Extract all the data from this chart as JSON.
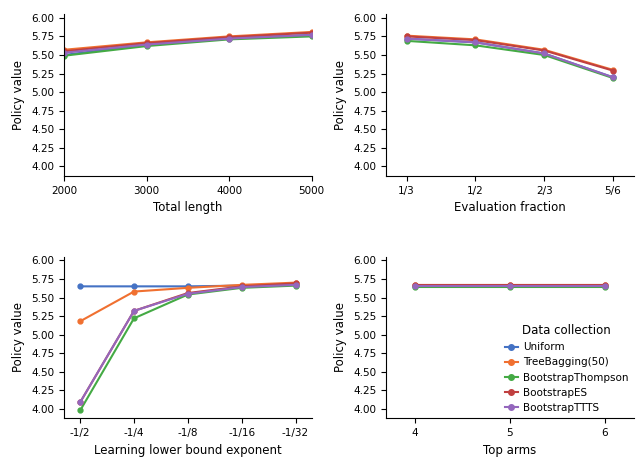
{
  "colors": {
    "Uniform": "#4472c4",
    "TreeBagging50": "#f07030",
    "BootstrapThompson": "#44aa44",
    "BootstrapES": "#c04040",
    "BootstrapTTTS": "#9467bd"
  },
  "legend_labels": [
    "Uniform",
    "TreeBagging(50)",
    "BootstrapThompson",
    "BootstrapES",
    "BootstrapTTTS"
  ],
  "legend_colors": [
    "#4472c4",
    "#f07030",
    "#44aa44",
    "#c04040",
    "#9467bd"
  ],
  "plot1": {
    "xlabel": "Total length",
    "ylabel": "Policy value",
    "xlim": [
      2000,
      5000
    ],
    "ylim": [
      3.875,
      6.05
    ],
    "xticks": [
      2000,
      3000,
      4000,
      5000
    ],
    "yticks": [
      4.0,
      4.25,
      4.5,
      4.75,
      5.0,
      5.25,
      5.5,
      5.75,
      6.0
    ],
    "series": {
      "Uniform": [
        5.5,
        5.64,
        5.73,
        5.77
      ],
      "TreeBagging50": [
        5.57,
        5.67,
        5.75,
        5.81
      ],
      "BootstrapThompson": [
        5.49,
        5.62,
        5.71,
        5.75
      ],
      "BootstrapES": [
        5.55,
        5.66,
        5.74,
        5.8
      ],
      "BootstrapTTTS": [
        5.53,
        5.64,
        5.72,
        5.77
      ]
    }
  },
  "plot2": {
    "xlabel": "Evaluation fraction",
    "ylabel": "Policy value",
    "xlim_labels": [
      "1/3",
      "1/2",
      "2/3",
      "5/6"
    ],
    "ylim": [
      3.875,
      6.05
    ],
    "yticks": [
      4.0,
      4.25,
      4.5,
      4.75,
      5.0,
      5.25,
      5.5,
      5.75,
      6.0
    ],
    "series": {
      "Uniform": [
        5.72,
        5.67,
        5.52,
        5.2
      ],
      "TreeBagging50": [
        5.76,
        5.71,
        5.57,
        5.3
      ],
      "BootstrapThompson": [
        5.69,
        5.63,
        5.5,
        5.19
      ],
      "BootstrapES": [
        5.75,
        5.7,
        5.56,
        5.29
      ],
      "BootstrapTTTS": [
        5.72,
        5.67,
        5.52,
        5.2
      ]
    }
  },
  "plot3": {
    "xlabel": "Learning lower bound exponent",
    "ylabel": "Policy value",
    "xlim_labels": [
      "-1/2",
      "-1/4",
      "-1/8",
      "-1/16",
      "-1/32"
    ],
    "ylim": [
      3.875,
      6.05
    ],
    "yticks": [
      4.0,
      4.25,
      4.5,
      4.75,
      5.0,
      5.25,
      5.5,
      5.75,
      6.0
    ],
    "series": {
      "Uniform": [
        5.65,
        5.65,
        5.65,
        5.66,
        5.67
      ],
      "TreeBagging50": [
        5.18,
        5.58,
        5.63,
        5.67,
        5.7
      ],
      "BootstrapThompson": [
        3.98,
        5.22,
        5.54,
        5.63,
        5.66
      ],
      "BootstrapES": [
        4.09,
        5.32,
        5.56,
        5.65,
        5.69
      ],
      "BootstrapTTTS": [
        4.09,
        5.32,
        5.55,
        5.64,
        5.67
      ]
    }
  },
  "plot4": {
    "xlabel": "Top arms",
    "ylabel": "Policy value",
    "xlim": [
      4,
      6
    ],
    "xticks": [
      4,
      5,
      6
    ],
    "ylim": [
      3.875,
      6.05
    ],
    "yticks": [
      4.0,
      4.25,
      4.5,
      4.75,
      5.0,
      5.25,
      5.5,
      5.75,
      6.0
    ],
    "series": {
      "Uniform": [
        5.66,
        5.66,
        5.66
      ],
      "TreeBagging50": [
        5.67,
        5.67,
        5.67
      ],
      "BootstrapThompson": [
        5.64,
        5.64,
        5.64
      ],
      "BootstrapES": [
        5.67,
        5.67,
        5.67
      ],
      "BootstrapTTTS": [
        5.65,
        5.65,
        5.65
      ]
    }
  },
  "legend_title": "Data collection"
}
